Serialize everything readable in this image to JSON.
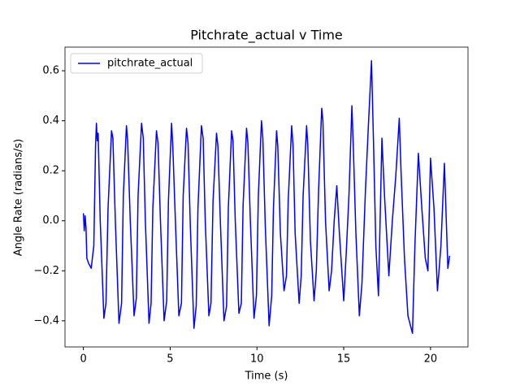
{
  "chart_data": {
    "type": "line",
    "title": "Pitchrate_actual v Time",
    "x_label": "Time (s)",
    "y_label": "Angle Rate (radians/s)",
    "x": [
      0,
      0.05,
      0.1,
      0.15,
      0.2,
      0.3,
      0.45,
      0.6,
      0.7,
      0.75,
      0.8,
      0.85,
      0.97,
      1.18,
      1.3,
      1.42,
      1.62,
      1.7,
      1.84,
      2.05,
      2.2,
      2.3,
      2.48,
      2.55,
      2.7,
      2.92,
      3.05,
      3.15,
      3.35,
      3.45,
      3.57,
      3.78,
      3.9,
      4.0,
      4.21,
      4.3,
      4.44,
      4.65,
      4.8,
      4.9,
      5.08,
      5.15,
      5.3,
      5.5,
      5.65,
      5.75,
      5.94,
      6.03,
      6.16,
      6.37,
      6.5,
      6.6,
      6.8,
      6.9,
      7.02,
      7.23,
      7.35,
      7.47,
      7.67,
      7.75,
      7.89,
      8.1,
      8.25,
      8.35,
      8.54,
      8.62,
      8.75,
      8.96,
      9.1,
      9.2,
      9.4,
      9.48,
      9.62,
      9.83,
      9.97,
      10.08,
      10.26,
      10.34,
      10.48,
      10.7,
      10.85,
      10.95,
      11.13,
      11.2,
      11.35,
      11.56,
      11.7,
      11.8,
      12.0,
      12.08,
      12.2,
      12.43,
      12.55,
      12.66,
      12.86,
      12.93,
      13.08,
      13.29,
      13.42,
      13.55,
      13.73,
      13.8,
      13.95,
      14.16,
      14.3,
      14.45,
      14.6,
      14.75,
      15.0,
      15.15,
      15.3,
      15.47,
      15.55,
      15.7,
      15.9,
      16.05,
      16.25,
      16.4,
      16.6,
      16.72,
      16.85,
      17.0,
      17.2,
      17.35,
      17.6,
      17.8,
      18.0,
      18.2,
      18.3,
      18.5,
      18.7,
      18.96,
      19.1,
      19.3,
      19.5,
      19.7,
      19.85,
      20.0,
      20.2,
      20.4,
      20.6,
      20.8,
      21.0,
      21.1
    ],
    "series": [
      {
        "name": "pitchrate_actual",
        "color": "#0000ff",
        "values": [
          0.03,
          -0.04,
          0.02,
          -0.03,
          -0.15,
          -0.17,
          -0.19,
          -0.1,
          0.3,
          0.39,
          0.32,
          0.35,
          0.0,
          -0.39,
          -0.33,
          0.05,
          0.36,
          0.33,
          0.0,
          -0.41,
          -0.33,
          0.1,
          0.38,
          0.32,
          0.0,
          -0.38,
          -0.31,
          0.1,
          0.39,
          0.33,
          0.0,
          -0.41,
          -0.33,
          0.05,
          0.36,
          0.31,
          0.0,
          -0.4,
          -0.32,
          0.08,
          0.39,
          0.3,
          0.0,
          -0.38,
          -0.33,
          0.1,
          0.37,
          0.31,
          -0.02,
          -0.43,
          -0.34,
          0.05,
          0.38,
          0.33,
          0.0,
          -0.38,
          -0.33,
          0.08,
          0.35,
          0.3,
          0.0,
          -0.4,
          -0.34,
          0.05,
          0.36,
          0.32,
          0.0,
          -0.37,
          -0.33,
          0.06,
          0.37,
          0.31,
          0.0,
          -0.39,
          -0.3,
          0.1,
          0.4,
          0.33,
          -0.02,
          -0.42,
          -0.3,
          0.05,
          0.36,
          0.3,
          -0.05,
          -0.28,
          -0.22,
          0.08,
          0.38,
          0.3,
          -0.05,
          -0.33,
          -0.22,
          0.1,
          0.38,
          0.3,
          -0.08,
          -0.32,
          -0.2,
          0.12,
          0.45,
          0.4,
          0.0,
          -0.28,
          -0.2,
          0.0,
          0.14,
          -0.05,
          -0.32,
          -0.12,
          0.1,
          0.46,
          0.3,
          -0.05,
          -0.38,
          -0.25,
          0.12,
          0.35,
          0.64,
          0.3,
          -0.1,
          -0.3,
          0.33,
          0.1,
          -0.22,
          0.0,
          0.18,
          0.41,
          0.2,
          -0.15,
          -0.38,
          -0.45,
          -0.1,
          0.27,
          0.05,
          -0.15,
          -0.2,
          0.25,
          0.05,
          -0.28,
          -0.1,
          0.23,
          -0.19,
          -0.14
        ]
      }
    ],
    "xlim": [
      -1.06,
      22.16
    ],
    "xticks": [
      0,
      5,
      10,
      15,
      20
    ],
    "ylim": [
      -0.5045,
      0.6945
    ],
    "yticks": [
      {
        "value": -0.4,
        "label": "−0.4"
      },
      {
        "value": -0.2,
        "label": "−0.2"
      },
      {
        "value": 0,
        "label": "0.0"
      },
      0.2,
      0.4,
      0.6
    ],
    "legend": "upper left",
    "grid": false
  }
}
